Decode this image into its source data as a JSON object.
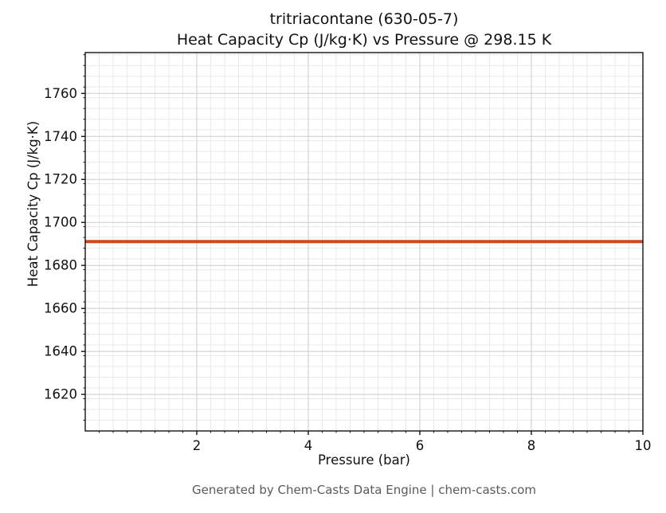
{
  "chart_data": {
    "type": "line",
    "title": "tritriacontane (630-05-7)",
    "subtitle": "Heat Capacity Cp (J/kg·K) vs Pressure @ 298.15 K",
    "xlabel": "Pressure (bar)",
    "ylabel": "Heat Capacity Cp (J/kg·K)",
    "xlim": [
      0,
      10
    ],
    "ylim": [
      1603,
      1779
    ],
    "xticks": [
      2,
      4,
      6,
      8,
      10
    ],
    "yticks": [
      1620,
      1640,
      1660,
      1680,
      1700,
      1720,
      1740,
      1760
    ],
    "x_minor_step": 0.25,
    "y_minor_step": 5,
    "grid": true,
    "legend": "none",
    "series": [
      {
        "name": "Heat Capacity Cp",
        "x": [
          0,
          10
        ],
        "values": [
          1691.1,
          1691.1
        ],
        "color": "#d0481f",
        "line_width": 4
      }
    ]
  },
  "colors": {
    "grid_major": "#cbcbcb",
    "grid_minor": "#e9e9e9",
    "axis": "#000000",
    "footer_text": "#5a5a5a"
  },
  "footer": {
    "text": "Generated by Chem-Casts Data Engine | chem-casts.com"
  }
}
